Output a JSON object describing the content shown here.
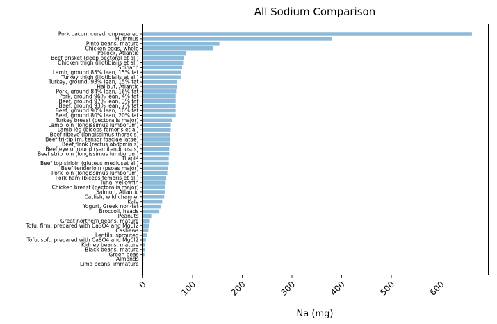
{
  "chart_data": {
    "type": "bar",
    "orientation": "horizontal",
    "title": "All Sodium Comparison",
    "xlabel": "Na (mg)",
    "ylabel": "",
    "xlim": [
      0,
      695
    ],
    "xticks": [
      0,
      100,
      200,
      300,
      400,
      500,
      600
    ],
    "bar_color": "#8dbad9",
    "grid": false,
    "legend": "none",
    "categories": [
      "Pork bacon, cured, unprepared",
      "Hummus",
      "Pinto beans, mature",
      "Chicken eggs, whole",
      "Pollock, Atlantic",
      "Beef brisket (deep pectoral et al.)",
      "Chicken thigh (iliotibialis et al.)",
      "Spinach",
      "Lamb, ground 85% lean, 15% fat",
      "Turkey thigh (iliotibialis et al.)",
      "Turkey, ground, 93% lean, 15% fat",
      "Halibut, Atlantic",
      "Pork, ground 84% lean, 16% fat",
      "Pork, ground 96% lean, 4% fat",
      "Beef, ground 97% lean, 3% fat",
      "Beef, ground 93% lean, 7% fat",
      "Beef, ground 90% lean, 10% fat",
      "Beef, ground 80% lean, 20% fat",
      "Turkey breast (pectoralis major)",
      "Lamb loin (longissimus lumborum)",
      "Lamb leg (biceps femoris et al)",
      "Beef ribeye (longissimus thoracis)",
      "Beef tri-tip (m. tensor fasciae latae)",
      "Beef flank (rectus abdominis)",
      "Beef eye of round (semitendinosus)",
      "Beef strip loin (longissimus lumborum)",
      "Tilapia",
      "Beef top sirloin (gluteus mediuset al.)",
      "Beef tenderloin (psoas major)",
      "Pork loin (longissimus lumborum)",
      "Pork ham (biceps femoris et al.)",
      "Tuna, yellowfin",
      "Chicken breast (pectoralis major)",
      "Salmon, Atlantic",
      "Catfish, wild channel",
      "Kale",
      "Yogurt, Greek non-fat",
      "Broccoli, heads",
      "Peanuts",
      "Great northern beans, mature",
      "Tofu, firm, prepared with CaSO4 and MgCl2",
      "Cashews",
      "Lentils, sprouted",
      "Tofu, soft, prepared with CaSO4 and MgCl2",
      "Kidney beans, mature",
      "Black beans, mature",
      "Green peas",
      "Almonds",
      "Lima beans, immature"
    ],
    "values": [
      662,
      380,
      154,
      142,
      86,
      83,
      81,
      79,
      77,
      76,
      69,
      68,
      67,
      66,
      66,
      66,
      66,
      66,
      59,
      56,
      56,
      55,
      54,
      54,
      53,
      53,
      52,
      52,
      50,
      49,
      47,
      46,
      45,
      44,
      43,
      39,
      36,
      33,
      17,
      14,
      12,
      11,
      9,
      6,
      5,
      5,
      3,
      1,
      1
    ]
  }
}
